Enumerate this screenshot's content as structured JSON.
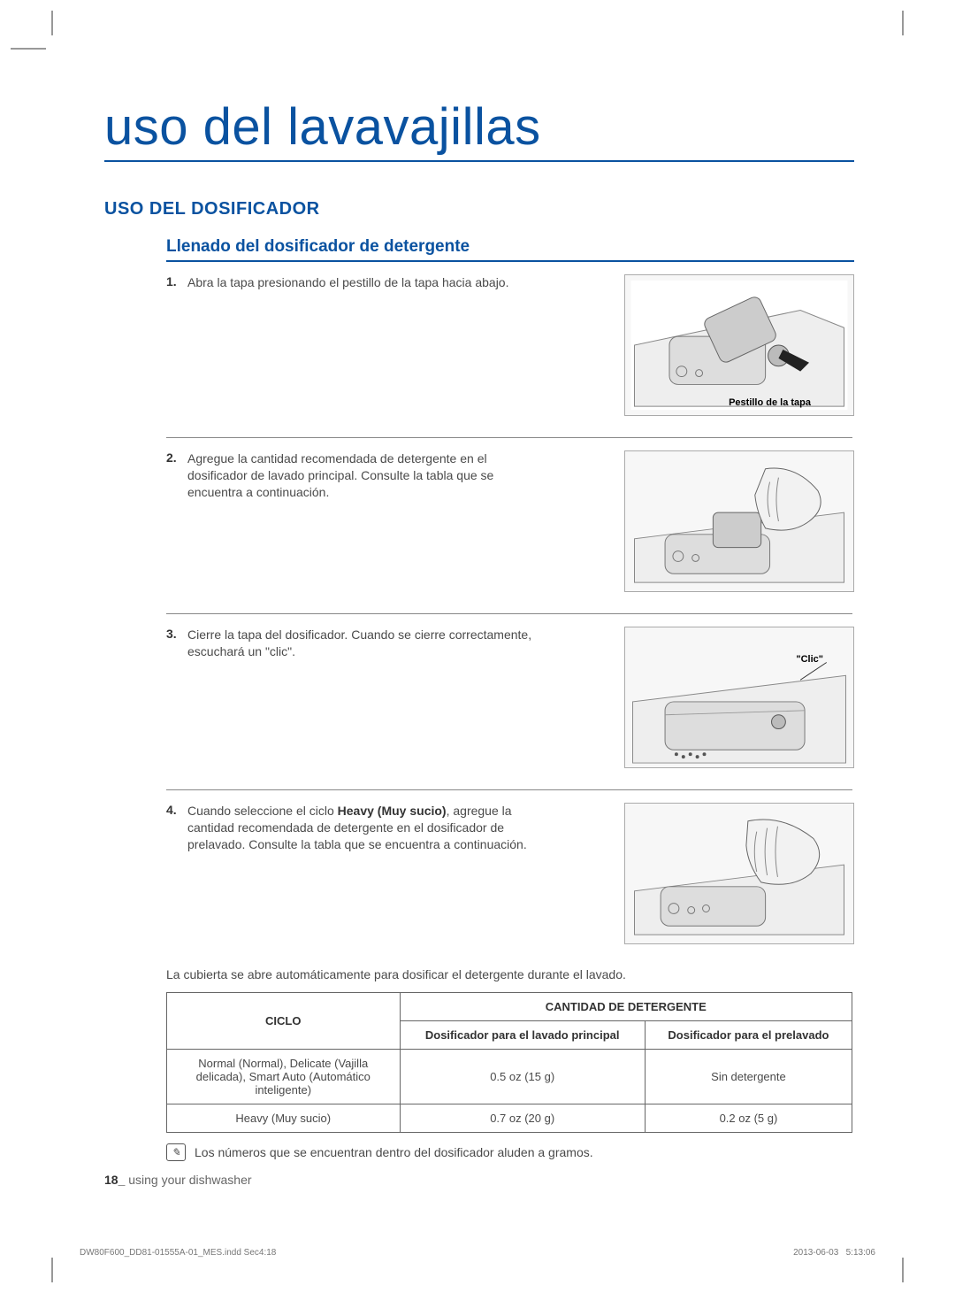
{
  "main_title": "uso del lavavajillas",
  "section_title": "USO DEL DOSIFICADOR",
  "subsection_title": "Llenado del dosificador de detergente",
  "steps": [
    {
      "num": "1.",
      "text": "Abra la tapa presionando el pestillo de la tapa hacia abajo.",
      "illus_label": "Pestillo de la tapa",
      "illus_label_style": "bottom:8px; right:48px;"
    },
    {
      "num": "2.",
      "text": "Agregue la cantidad recomendada de detergente en el dosificador de lavado principal. Consulte la tabla que se encuentra a continuación.",
      "illus_label": "",
      "illus_label_style": ""
    },
    {
      "num": "3.",
      "text": "Cierre la tapa del dosificador. Cuando se cierre correctamente, escuchará un \"clic\".",
      "illus_label": "\"Clic\"",
      "illus_label_style": "top:30px; right:34px;"
    },
    {
      "num": "4.",
      "text_html": "Cuando seleccione el ciclo <b>Heavy (Muy sucio)</b>, agregue la cantidad recomendada de detergente en el dosificador de prelavado. Consulte la tabla que se encuentra a continuación.",
      "illus_label": "",
      "illus_label_style": ""
    }
  ],
  "note_line": "La cubierta se abre automáticamente para dosificar el detergente durante el lavado.",
  "table": {
    "header_cycle": "CICLO",
    "header_amount": "CANTIDAD DE DETERGENTE",
    "col_main": "Dosificador para el lavado principal",
    "col_pre": "Dosificador para el prelavado",
    "rows": [
      {
        "cycle": "Normal (Normal), Delicate (Vajilla delicada), Smart Auto (Automático inteligente)",
        "main": "0.5 oz (15 g)",
        "pre": "Sin detergente"
      },
      {
        "cycle": "Heavy (Muy sucio)",
        "main": "0.7 oz (20 g)",
        "pre": "0.2 oz (5 g)"
      }
    ]
  },
  "footnote": "Los números que se encuentran dentro del dosificador aluden a gramos.",
  "page_footer_num": "18_",
  "page_footer_text": " using your dishwasher",
  "imprint_left": "DW80F600_DD81-01555A-01_MES.indd   Sec4:18",
  "imprint_date": "2013-06-03",
  "imprint_time": "5:13:06",
  "colors": {
    "accent": "#0a52a0",
    "text": "#4a4a4a",
    "border": "#666666"
  }
}
